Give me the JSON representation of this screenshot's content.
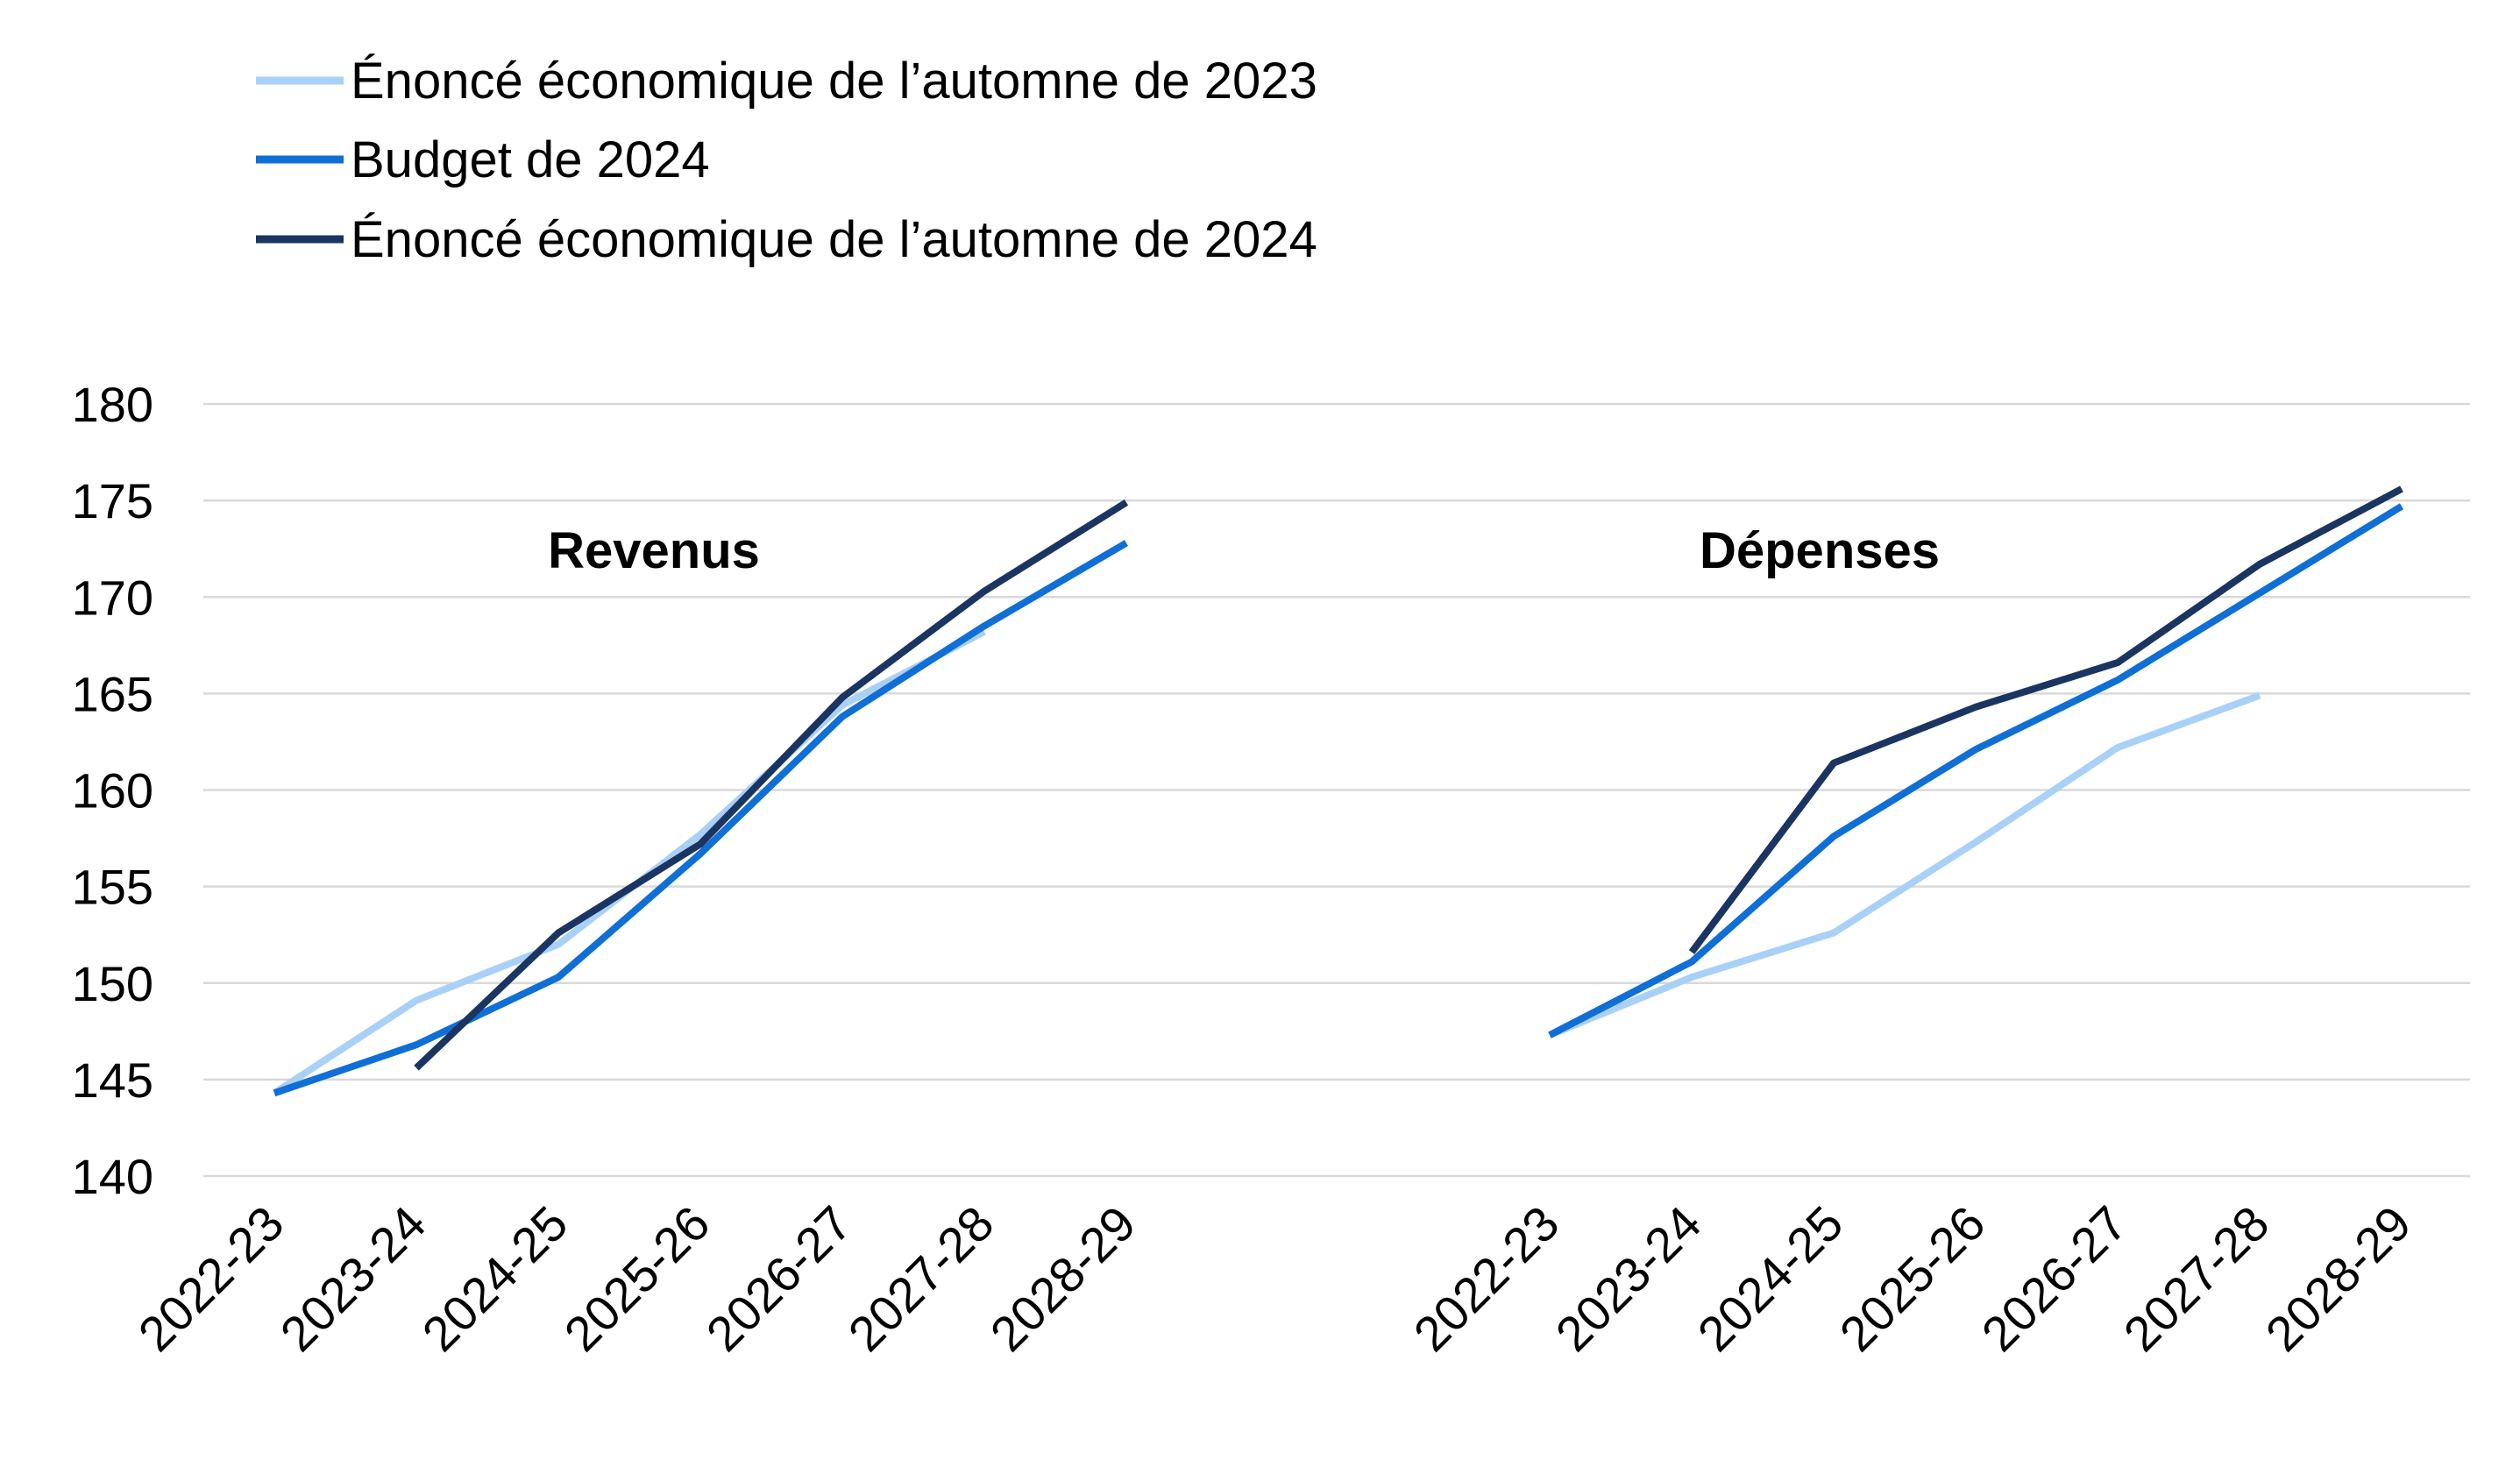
{
  "legend": {
    "items": [
      {
        "label": "Énoncé économique de l’automne de 2023",
        "color": "#a9d1f7"
      },
      {
        "label": "Budget de 2024",
        "color": "#0f6fd6"
      },
      {
        "label": "Énoncé économique de l’automne de 2024",
        "color": "#1b3562"
      }
    ]
  },
  "chart_data": [
    {
      "type": "line",
      "title": "Revenus",
      "categories": [
        "2022-23",
        "2023-24",
        "2024-25",
        "2025-26",
        "2026-27",
        "2027-28",
        "2028-29"
      ],
      "ylim": [
        140,
        180
      ],
      "yticks": [
        140,
        145,
        150,
        155,
        160,
        165,
        170,
        175,
        180
      ],
      "grid": true,
      "legend_position": "top-left",
      "series": [
        {
          "name": "Énoncé économique de l’automne de 2023",
          "color": "#a9d1f7",
          "values": [
            144.3,
            149.1,
            152.0,
            157.7,
            164.4,
            168.2,
            null
          ]
        },
        {
          "name": "Budget de 2024",
          "color": "#0f6fd6",
          "values": [
            144.3,
            146.8,
            150.3,
            156.7,
            163.8,
            168.5,
            172.8
          ]
        },
        {
          "name": "Énoncé économique de l’automne de 2024",
          "color": "#1b3562",
          "values": [
            null,
            145.6,
            152.6,
            157.2,
            164.8,
            170.3,
            174.9
          ]
        }
      ]
    },
    {
      "type": "line",
      "title": "Dépenses",
      "categories": [
        "2022-23",
        "2023-24",
        "2024-25",
        "2025-26",
        "2026-27",
        "2027-28",
        "2028-29"
      ],
      "ylim": [
        140,
        180
      ],
      "yticks": [
        140,
        145,
        150,
        155,
        160,
        165,
        170,
        175,
        180
      ],
      "grid": true,
      "legend_position": "top-left",
      "series": [
        {
          "name": "Énoncé économique de l’automne de 2023",
          "color": "#a9d1f7",
          "values": [
            147.3,
            150.3,
            152.6,
            157.3,
            162.2,
            164.9,
            null
          ]
        },
        {
          "name": "Budget de 2024",
          "color": "#0f6fd6",
          "values": [
            147.3,
            151.1,
            157.6,
            162.1,
            165.7,
            170.2,
            174.7
          ]
        },
        {
          "name": "Énoncé économique de l’automne de 2024",
          "color": "#1b3562",
          "values": [
            null,
            151.6,
            161.4,
            164.3,
            166.6,
            171.7,
            175.6
          ]
        }
      ]
    }
  ]
}
